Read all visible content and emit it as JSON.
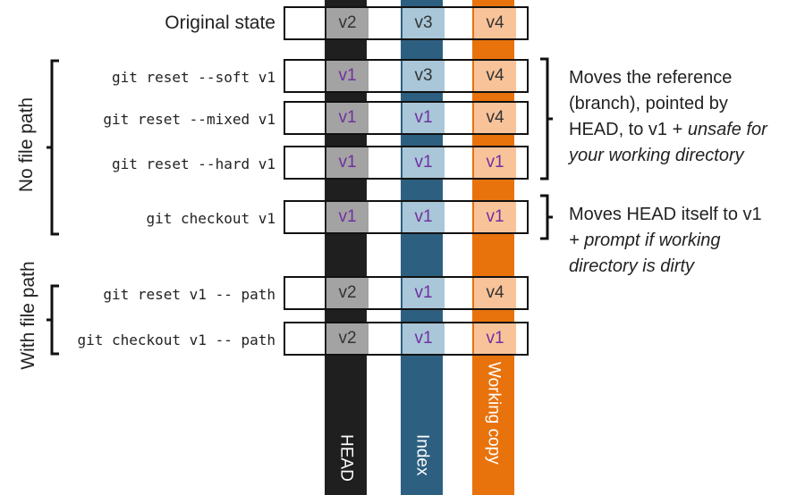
{
  "columns": {
    "head": "HEAD",
    "index": "Index",
    "working": "Working copy"
  },
  "colors": {
    "head_column": "#1f1f1f",
    "index_column": "#2d5f80",
    "working_column": "#e8720c",
    "changed_value_text": "#7030a0"
  },
  "rows": [
    {
      "label": "Original state",
      "head": "v2",
      "index": "v3",
      "working": "v4"
    },
    {
      "label": "git reset --soft v1",
      "head": "v1",
      "index": "v3",
      "working": "v4"
    },
    {
      "label": "git reset --mixed v1",
      "head": "v1",
      "index": "v1",
      "working": "v4"
    },
    {
      "label": "git reset --hard v1",
      "head": "v1",
      "index": "v1",
      "working": "v1"
    },
    {
      "label": "git checkout v1",
      "head": "v1",
      "index": "v1",
      "working": "v1"
    },
    {
      "label": "git reset v1 -- path",
      "head": "v2",
      "index": "v1",
      "working": "v4"
    },
    {
      "label": "git checkout v1 -- path",
      "head": "v2",
      "index": "v1",
      "working": "v1"
    }
  ],
  "groups": {
    "no_file_path": "No file path",
    "with_file_path": "With file path"
  },
  "notes": {
    "reset": {
      "line1": "Moves the reference",
      "line2": "(branch), pointed by",
      "line3_plain": "HEAD, to v1 + ",
      "line3_italic": "unsafe for",
      "line4_italic": "your working directory"
    },
    "checkout": {
      "line1": "Moves HEAD itself to v1",
      "line2_italic": "+ prompt if working",
      "line3_italic": "directory is dirty"
    }
  }
}
